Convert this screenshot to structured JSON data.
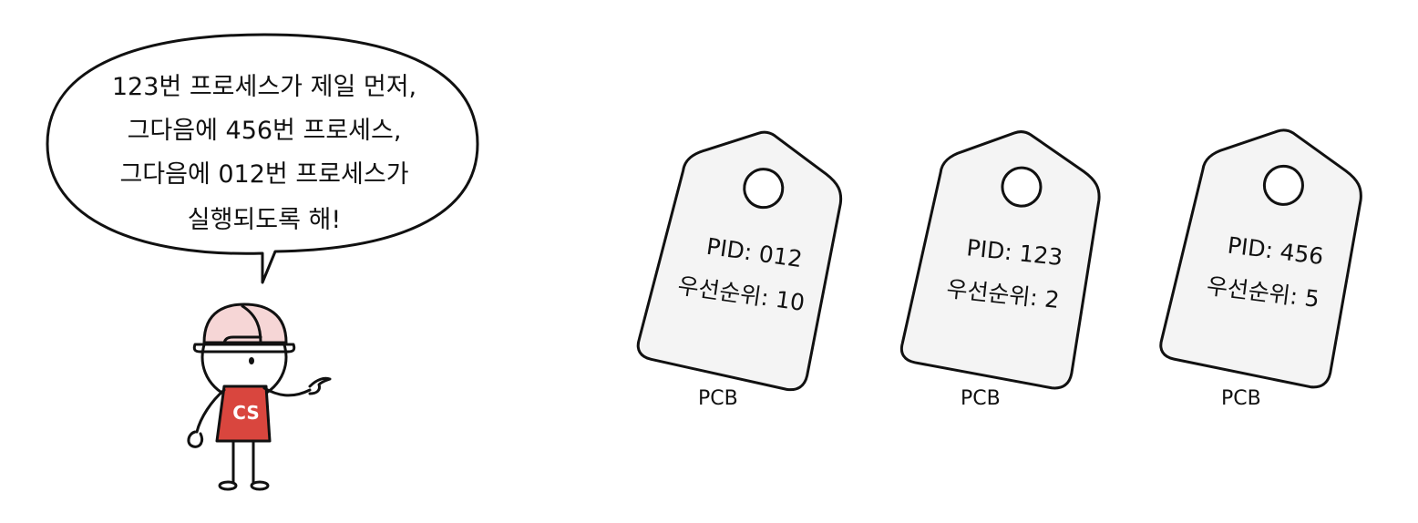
{
  "speech_bubble": {
    "lines": [
      "123번 프로세스가 제일 먼저,",
      "그다음에 456번 프로세스,",
      "그다음에 012번 프로세스가",
      "실행되도록 해!"
    ]
  },
  "character": {
    "shirt_text": "CS",
    "shirt_color": "#d9463e",
    "helmet_color": "#f6d6d6"
  },
  "tags": [
    {
      "pid": "PID: 012",
      "priority": "우선순위: 10",
      "label": "PCB"
    },
    {
      "pid": "PID: 123",
      "priority": "우선순위: 2",
      "label": "PCB"
    },
    {
      "pid": "PID: 456",
      "priority": "우선순위: 5",
      "label": "PCB"
    }
  ],
  "colors": {
    "tag_fill": "#f4f4f4",
    "outline": "#111111"
  }
}
